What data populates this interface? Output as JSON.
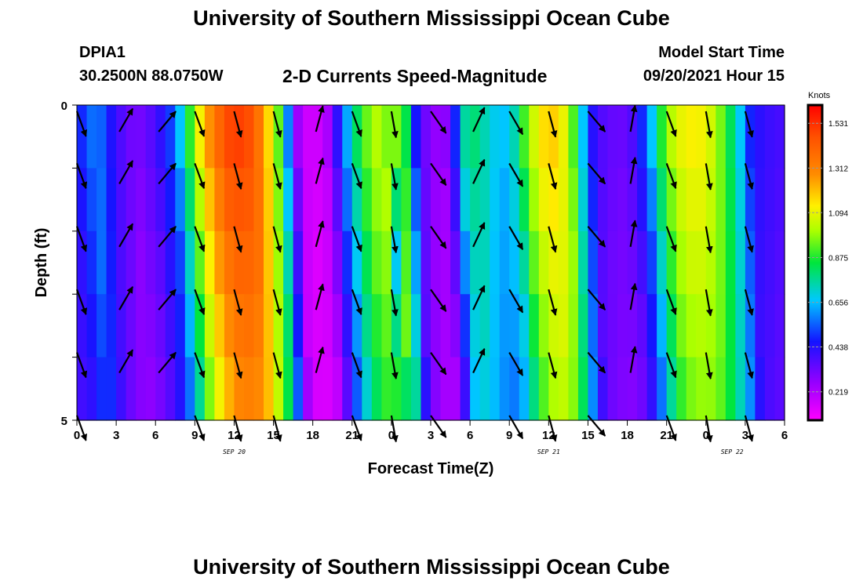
{
  "header": {
    "title": "University of Southern Mississippi Ocean Cube",
    "station": "DPIA1",
    "coords": "30.2500N  88.0750W",
    "plot_title": "2-D Currents Speed-Magnitude",
    "model_start_label": "Model Start Time",
    "model_start_value": "09/20/2021 Hour 15"
  },
  "footer": {
    "title": "University of Southern Mississippi Ocean Cube"
  },
  "chart_data": {
    "type": "heatmap",
    "title": "2-D Currents Speed-Magnitude",
    "xlabel": "Forecast Time(Z)",
    "ylabel": "Depth (ft)",
    "x_ticks": [
      "0",
      "3",
      "6",
      "9",
      "12",
      "15",
      "18",
      "21",
      "0",
      "3",
      "6",
      "9",
      "12",
      "15",
      "18",
      "21",
      "0",
      "3",
      "6"
    ],
    "x_range_hours": [
      0,
      54
    ],
    "date_labels": [
      {
        "label": "SEP 20",
        "hour": 12
      },
      {
        "label": "SEP 21",
        "hour": 36
      },
      {
        "label": "SEP 22",
        "hour": 50
      }
    ],
    "y_ticks": [
      "0",
      "5"
    ],
    "ylim": [
      0,
      5
    ],
    "colorbar": {
      "unit": "Knots",
      "ticks": [
        "1.531",
        "1.312",
        "1.094",
        "0.875",
        "0.656",
        "0.438",
        "0.219"
      ],
      "tick_values": [
        1.531,
        1.312,
        1.094,
        0.875,
        0.656,
        0.438,
        0.219
      ],
      "range": [
        0.08,
        1.62
      ]
    },
    "depth_layers": 5,
    "speed_profile_by_hour": [
      [
        0,
        0.45
      ],
      [
        1.5,
        0.6
      ],
      [
        3,
        0.4
      ],
      [
        4.5,
        0.3
      ],
      [
        6,
        0.38
      ],
      [
        7.5,
        0.55
      ],
      [
        8.5,
        0.85
      ],
      [
        9.5,
        1.15
      ],
      [
        10.5,
        1.35
      ],
      [
        11.5,
        1.48
      ],
      [
        12.5,
        1.5
      ],
      [
        13.5,
        1.45
      ],
      [
        14.5,
        1.2
      ],
      [
        15.5,
        0.9
      ],
      [
        16.3,
        0.5
      ],
      [
        17,
        0.2
      ],
      [
        18,
        0.15
      ],
      [
        19,
        0.2
      ],
      [
        19.8,
        0.4
      ],
      [
        20.5,
        0.6
      ],
      [
        21.5,
        0.85
      ],
      [
        22.5,
        1.0
      ],
      [
        23.5,
        1.05
      ],
      [
        24,
        0.7
      ],
      [
        24.5,
        1.05
      ],
      [
        25,
        0.9
      ],
      [
        26,
        0.4
      ],
      [
        27,
        0.28
      ],
      [
        28,
        0.25
      ],
      [
        28.8,
        0.45
      ],
      [
        29.5,
        0.75
      ],
      [
        30.5,
        0.8
      ],
      [
        31.5,
        0.7
      ],
      [
        32.5,
        0.65
      ],
      [
        33.5,
        0.75
      ],
      [
        34.5,
        1.0
      ],
      [
        35.5,
        1.15
      ],
      [
        36.5,
        1.18
      ],
      [
        37.5,
        1.05
      ],
      [
        38.5,
        0.7
      ],
      [
        39.5,
        0.4
      ],
      [
        40.5,
        0.35
      ],
      [
        41.5,
        0.33
      ],
      [
        42.5,
        0.38
      ],
      [
        43.5,
        0.55
      ],
      [
        44.5,
        0.85
      ],
      [
        45.5,
        1.05
      ],
      [
        46.5,
        1.12
      ],
      [
        47.5,
        1.12
      ],
      [
        48.5,
        1.05
      ],
      [
        49.5,
        0.9
      ],
      [
        50.5,
        0.7
      ],
      [
        51.5,
        0.45
      ],
      [
        53,
        0.4
      ],
      [
        54,
        0.38
      ]
    ],
    "arrow_hours": [
      0,
      3,
      6,
      9,
      12,
      15,
      18,
      21,
      24,
      27,
      30,
      33,
      36,
      39,
      42,
      45,
      48,
      51
    ],
    "arrow_direction_deg": [
      160,
      30,
      40,
      160,
      165,
      165,
      15,
      160,
      170,
      145,
      25,
      150,
      165,
      140,
      10,
      160,
      170,
      165
    ]
  }
}
